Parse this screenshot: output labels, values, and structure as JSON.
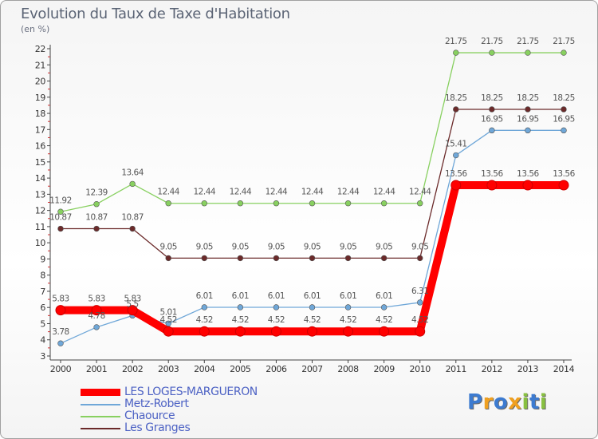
{
  "title": "Evolution du Taux de Taxe d'Habitation",
  "subtitle": "(en %)",
  "logo": {
    "text": "Proxiti",
    "letters": [
      {
        "ch": "P",
        "color": "#3d7bd0"
      },
      {
        "ch": "r",
        "color": "#f0a020"
      },
      {
        "ch": "o",
        "color": "#3d7bd0"
      },
      {
        "ch": "x",
        "color": "#f0a020"
      },
      {
        "ch": "i",
        "color": "#88c040"
      },
      {
        "ch": "t",
        "color": "#3d7bd0"
      },
      {
        "ch": "i",
        "color": "#88c040"
      }
    ]
  },
  "chart_data": {
    "type": "line",
    "title": "Evolution du Taux de Taxe d'Habitation",
    "ylabel": "(en %)",
    "xlabel": "",
    "ylim": [
      3,
      22
    ],
    "yticks": [
      3,
      4,
      5,
      6,
      7,
      8,
      9,
      10,
      11,
      12,
      13,
      14,
      15,
      16,
      17,
      18,
      19,
      20,
      21,
      22
    ],
    "grid": false,
    "legend_position": "bottom-left",
    "categories": [
      "2000",
      "2001",
      "2002",
      "2003",
      "2004",
      "2005",
      "2006",
      "2007",
      "2008",
      "2009",
      "2010",
      "2011",
      "2012",
      "2013",
      "2014"
    ],
    "series": [
      {
        "name": "LES LOGES-MARGUERON",
        "color": "#ff0000",
        "values": [
          5.83,
          5.83,
          5.83,
          4.52,
          4.52,
          4.52,
          4.52,
          4.52,
          4.52,
          4.52,
          4.52,
          13.56,
          13.56,
          13.56,
          13.56
        ],
        "labels": [
          "5.83",
          "5.83",
          "5.83",
          "4.52",
          "4.52",
          "4.52",
          "4.52",
          "4.52",
          "4.52",
          "4.52",
          "4.52",
          "13.56",
          "13.56",
          "13.56",
          "13.56"
        ]
      },
      {
        "name": "Metz-Robert",
        "color": "#6fa7d8",
        "values": [
          3.78,
          4.78,
          5.5,
          5.01,
          6.01,
          6.01,
          6.01,
          6.01,
          6.01,
          6.01,
          6.31,
          15.41,
          16.95,
          16.95,
          16.95
        ],
        "labels": [
          "3.78",
          "4.78",
          "5.5",
          "5.01",
          "6.01",
          "6.01",
          "6.01",
          "6.01",
          "6.01",
          "6.01",
          "6.31",
          "15.41",
          "16.95",
          "16.95",
          "16.95"
        ]
      },
      {
        "name": "Chaource",
        "color": "#88d060",
        "values": [
          11.92,
          12.39,
          13.64,
          12.44,
          12.44,
          12.44,
          12.44,
          12.44,
          12.44,
          12.44,
          12.44,
          21.75,
          21.75,
          21.75,
          21.75
        ],
        "labels": [
          "11.92",
          "12.39",
          "13.64",
          "12.44",
          "12.44",
          "12.44",
          "12.44",
          "12.44",
          "12.44",
          "12.44",
          "12.44",
          "21.75",
          "21.75",
          "21.75",
          "21.75"
        ]
      },
      {
        "name": "Les Granges",
        "color": "#6b2a2a",
        "values": [
          10.87,
          10.87,
          10.87,
          9.05,
          9.05,
          9.05,
          9.05,
          9.05,
          9.05,
          9.05,
          9.05,
          18.25,
          18.25,
          18.25,
          18.25
        ],
        "labels": [
          "10.87",
          "10.87",
          "10.87",
          "9.05",
          "9.05",
          "9.05",
          "9.05",
          "9.05",
          "9.05",
          "9.05",
          "9.05",
          "18.25",
          "18.25",
          "18.25",
          "18.25"
        ]
      }
    ]
  }
}
